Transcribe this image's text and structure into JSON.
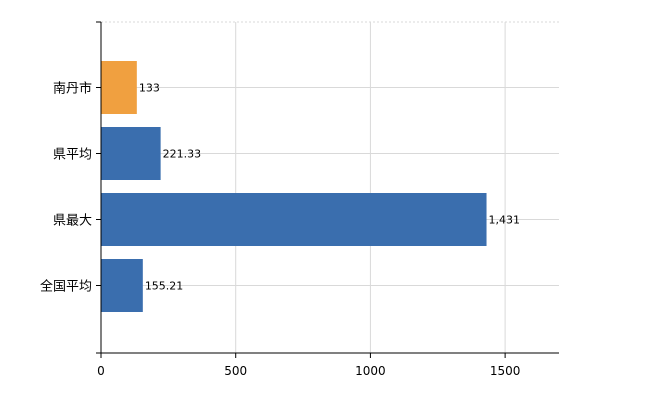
{
  "chart_data": {
    "type": "bar",
    "orientation": "horizontal",
    "categories": [
      "南丹市",
      "県平均",
      "県最大",
      "全国平均"
    ],
    "values": [
      133,
      221.33,
      1431,
      155.21
    ],
    "value_labels": [
      "133",
      "221.33",
      "1,431",
      "155.21"
    ],
    "bar_colors": [
      "#F0A040",
      "#3A6EAE",
      "#3A6EAE",
      "#3A6EAE"
    ],
    "highlight_color": "#F0A040",
    "base_color": "#3A6EAE",
    "xlim": [
      0,
      1700
    ],
    "x_ticks": [
      0,
      500,
      1000,
      1500
    ],
    "x_tick_labels": [
      "0",
      "500",
      "1000",
      "1500"
    ],
    "grid": true,
    "legend": "none",
    "title": "",
    "xlabel": "",
    "ylabel": ""
  }
}
